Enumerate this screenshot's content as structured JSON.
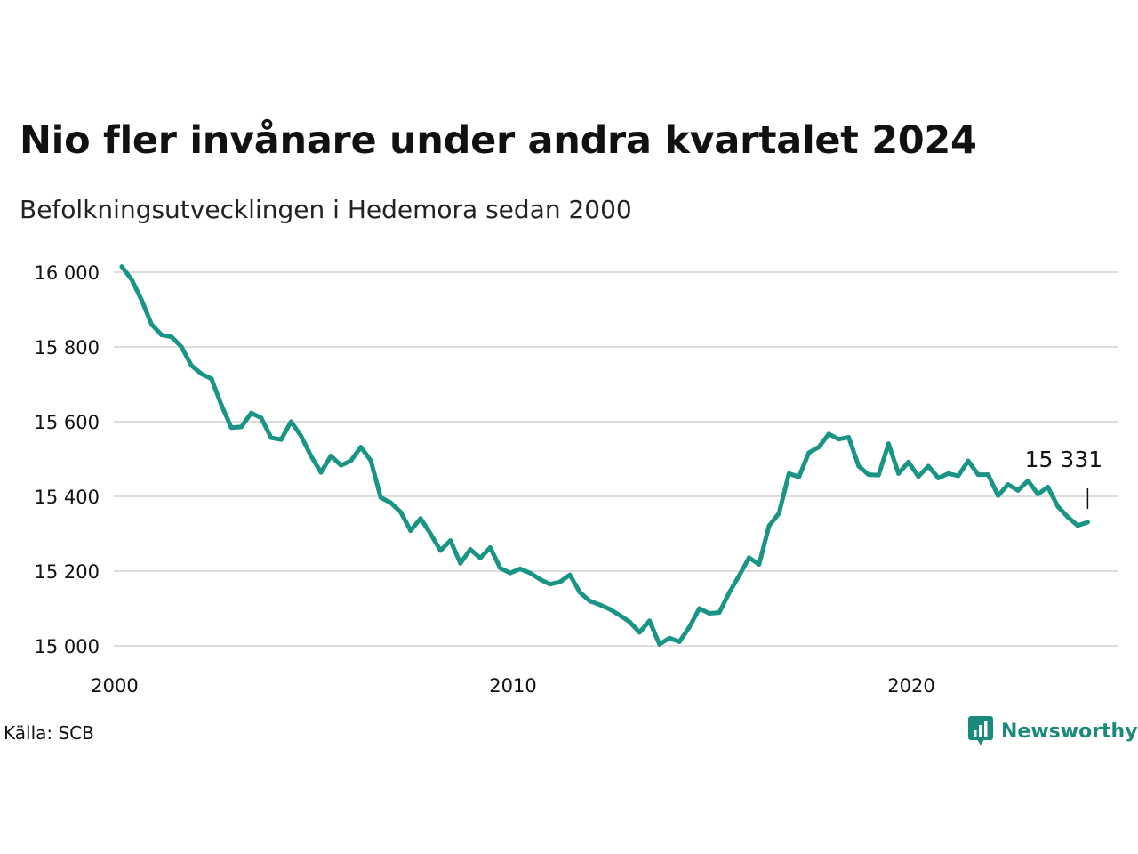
{
  "title": "Nio fler invånare under andra kvartalet 2024",
  "subtitle": "Befolkningsutvecklingen i Hedemora sedan 2000",
  "source": "Källa: SCB",
  "brand": {
    "name": "Newsworthy",
    "icon": "newsworthy-logo-icon"
  },
  "colors": {
    "line": "#1a9485",
    "grid": "#dddddd",
    "brand": "#1a8a7c",
    "text": "#111111"
  },
  "chart_data": {
    "type": "line",
    "title": "Nio fler invånare under andra kvartalet 2024",
    "subtitle": "Befolkningsutvecklingen i Hedemora sedan 2000",
    "xlabel": "",
    "ylabel": "",
    "x_unit": "year (quarterly)",
    "xlim": [
      2000,
      2025.4
    ],
    "ylim": [
      15000,
      16000
    ],
    "x_ticks": [
      2000,
      2010,
      2020
    ],
    "x_tick_labels": [
      "2000",
      "2010",
      "2020"
    ],
    "y_ticks": [
      15000,
      15200,
      15400,
      15600,
      15800,
      16000
    ],
    "y_tick_labels": [
      "15 000",
      "15 200",
      "15 400",
      "15 600",
      "15 800",
      "16 000"
    ],
    "grid": "horizontal",
    "legend": "none",
    "annotation": {
      "label": "15 331",
      "x": 2024.25,
      "y": 15331
    },
    "series": [
      {
        "x": [
          2000.0,
          2000.25,
          2000.5,
          2000.75,
          2001.0,
          2001.25,
          2001.5,
          2001.75,
          2002.0,
          2002.25,
          2002.5,
          2002.75,
          2003.0,
          2003.25,
          2003.5,
          2003.75,
          2004.0,
          2004.25,
          2004.5,
          2004.75,
          2005.0,
          2005.25,
          2005.5,
          2005.75,
          2006.0,
          2006.25,
          2006.5,
          2006.75,
          2007.0,
          2007.25,
          2007.5,
          2007.75,
          2008.0,
          2008.25,
          2008.5,
          2008.75,
          2009.0,
          2009.25,
          2009.5,
          2009.75,
          2010.0,
          2010.25,
          2010.5,
          2010.75,
          2011.0,
          2011.25,
          2011.5,
          2011.75,
          2012.0,
          2012.25,
          2012.5,
          2012.75,
          2013.0,
          2013.25,
          2013.5,
          2013.75,
          2014.0,
          2014.25,
          2014.5,
          2014.75,
          2015.0,
          2015.25,
          2015.5,
          2015.75,
          2016.0,
          2016.25,
          2016.5,
          2016.75,
          2017.0,
          2017.25,
          2017.5,
          2017.75,
          2018.0,
          2018.25,
          2018.5,
          2018.75,
          2019.0,
          2019.25,
          2019.5,
          2019.75,
          2020.0,
          2020.25,
          2020.5,
          2020.75,
          2021.0,
          2021.25,
          2021.5,
          2021.75,
          2022.0,
          2022.25,
          2022.5,
          2022.75,
          2023.0,
          2023.25,
          2023.5,
          2023.75,
          2024.0,
          2024.25
        ],
        "y": [
          16015,
          15980,
          15925,
          15860,
          15832,
          15827,
          15800,
          15750,
          15728,
          15715,
          15645,
          15584,
          15586,
          15623,
          15610,
          15557,
          15552,
          15600,
          15562,
          15508,
          15464,
          15508,
          15483,
          15495,
          15532,
          15496,
          15397,
          15383,
          15358,
          15308,
          15341,
          15300,
          15255,
          15282,
          15221,
          15258,
          15235,
          15263,
          15208,
          15195,
          15206,
          15195,
          15178,
          15165,
          15171,
          15190,
          15143,
          15120,
          15110,
          15098,
          15082,
          15064,
          15036,
          15067,
          15004,
          15021,
          15011,
          15050,
          15100,
          15087,
          15089,
          15142,
          15188,
          15236,
          15218,
          15321,
          15355,
          15461,
          15452,
          15517,
          15532,
          15567,
          15553,
          15558,
          15481,
          15458,
          15457,
          15541,
          15461,
          15492,
          15453,
          15481,
          15449,
          15461,
          15455,
          15495,
          15458,
          15458,
          15402,
          15432,
          15416,
          15442,
          15406,
          15425,
          15373,
          15345,
          15322,
          15331
        ]
      }
    ]
  }
}
